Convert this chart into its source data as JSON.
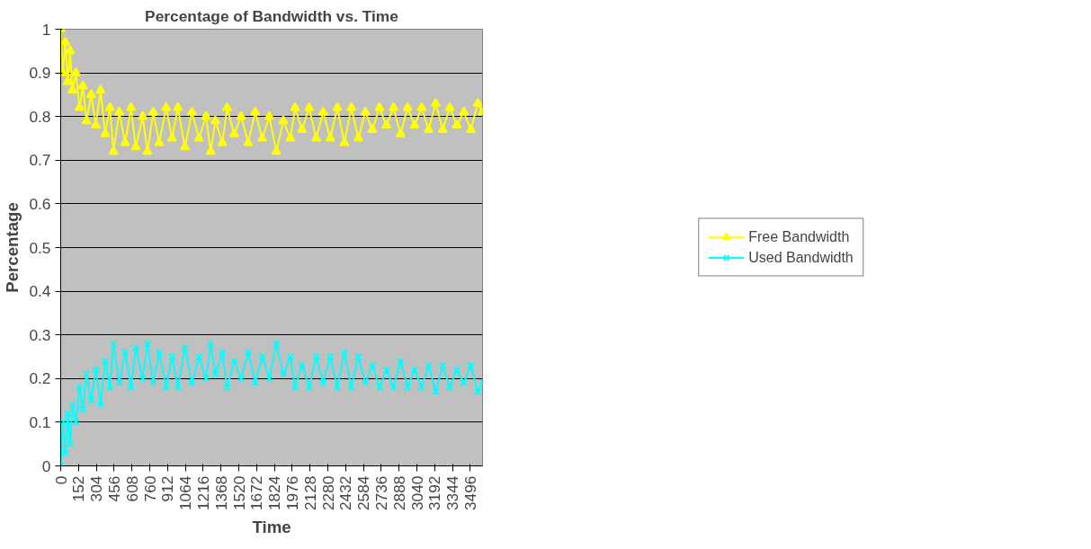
{
  "chart_data": {
    "type": "line",
    "title": "Percentage of Bandwidth vs. Time",
    "xlabel": "Time",
    "ylabel": "Percentage",
    "x": [
      0,
      20,
      40,
      60,
      80,
      100,
      130,
      160,
      190,
      220,
      260,
      300,
      340,
      380,
      420,
      450,
      500,
      550,
      600,
      640,
      700,
      740,
      790,
      840,
      900,
      950,
      1000,
      1060,
      1120,
      1180,
      1240,
      1280,
      1320,
      1380,
      1420,
      1480,
      1540,
      1600,
      1660,
      1720,
      1780,
      1840,
      1900,
      1960,
      2000,
      2060,
      2120,
      2180,
      2240,
      2300,
      2360,
      2420,
      2480,
      2540,
      2600,
      2660,
      2720,
      2780,
      2840,
      2900,
      2960,
      3020,
      3080,
      3140,
      3200,
      3260,
      3320,
      3380,
      3440,
      3500,
      3560,
      3600
    ],
    "series": [
      {
        "name": "Free Bandwidth",
        "color": "#ffff00",
        "marker": "triangle",
        "values": [
          1.0,
          0.9,
          0.97,
          0.88,
          0.95,
          0.86,
          0.9,
          0.82,
          0.87,
          0.79,
          0.85,
          0.78,
          0.86,
          0.76,
          0.82,
          0.72,
          0.81,
          0.74,
          0.82,
          0.73,
          0.8,
          0.72,
          0.81,
          0.74,
          0.82,
          0.75,
          0.82,
          0.73,
          0.81,
          0.75,
          0.8,
          0.72,
          0.79,
          0.74,
          0.82,
          0.76,
          0.8,
          0.74,
          0.81,
          0.75,
          0.8,
          0.72,
          0.79,
          0.75,
          0.82,
          0.77,
          0.82,
          0.75,
          0.81,
          0.75,
          0.82,
          0.74,
          0.82,
          0.75,
          0.81,
          0.77,
          0.82,
          0.78,
          0.82,
          0.76,
          0.82,
          0.78,
          0.82,
          0.77,
          0.83,
          0.77,
          0.82,
          0.78,
          0.81,
          0.77,
          0.83,
          0.81
        ]
      },
      {
        "name": "Used Bandwidth",
        "color": "#00ffff",
        "marker": "cross",
        "values": [
          0,
          0.1,
          0.03,
          0.12,
          0.05,
          0.14,
          0.1,
          0.18,
          0.13,
          0.21,
          0.15,
          0.22,
          0.14,
          0.24,
          0.18,
          0.28,
          0.19,
          0.26,
          0.18,
          0.27,
          0.2,
          0.28,
          0.19,
          0.26,
          0.18,
          0.25,
          0.18,
          0.27,
          0.19,
          0.25,
          0.2,
          0.28,
          0.21,
          0.26,
          0.18,
          0.24,
          0.2,
          0.26,
          0.19,
          0.25,
          0.2,
          0.28,
          0.21,
          0.25,
          0.18,
          0.23,
          0.18,
          0.25,
          0.19,
          0.25,
          0.18,
          0.26,
          0.18,
          0.25,
          0.19,
          0.23,
          0.18,
          0.22,
          0.18,
          0.24,
          0.18,
          0.22,
          0.18,
          0.23,
          0.17,
          0.23,
          0.18,
          0.22,
          0.19,
          0.23,
          0.17,
          0.19
        ]
      }
    ],
    "xlim": [
      0,
      3600
    ],
    "xticks": [
      0,
      152,
      304,
      456,
      608,
      760,
      912,
      1064,
      1216,
      1368,
      1520,
      1672,
      1824,
      1976,
      2128,
      2280,
      2432,
      2584,
      2736,
      2888,
      3040,
      3192,
      3344,
      3496
    ],
    "ylim": [
      0,
      1
    ],
    "yticks": [
      0,
      0.1,
      0.2,
      0.3,
      0.4,
      0.5,
      0.6,
      0.7,
      0.8,
      0.9,
      1
    ],
    "grid": "y",
    "legend": "right"
  }
}
